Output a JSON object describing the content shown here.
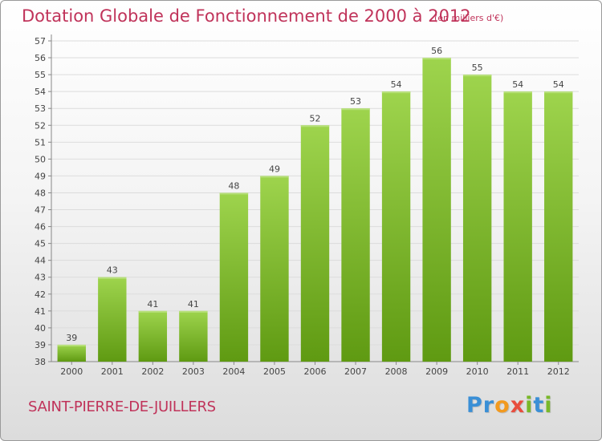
{
  "header": {
    "title": "Dotation Globale de Fonctionnement de 2000 à 2012",
    "unit_note": "(en milliers d'€)"
  },
  "footer": {
    "place_name": "SAINT-PIERRE-DE-JUILLERS",
    "logo_text": "Proxiti"
  },
  "colors": {
    "title": "#c0335a",
    "bar_light": "#9ed44d",
    "bar_dark": "#5f9a12",
    "grid": "#dcdcdc"
  },
  "chart_data": {
    "type": "bar",
    "title": "Dotation Globale de Fonctionnement de 2000 à 2012",
    "subtitle": "(en milliers d'€)",
    "xlabel": "",
    "ylabel": "",
    "categories": [
      "2000",
      "2001",
      "2002",
      "2003",
      "2004",
      "2005",
      "2006",
      "2007",
      "2008",
      "2009",
      "2010",
      "2011",
      "2012"
    ],
    "values": [
      39,
      43,
      41,
      41,
      48,
      49,
      52,
      53,
      54,
      56,
      55,
      54,
      54
    ],
    "ylim": [
      38,
      57
    ],
    "yticks": [
      38,
      39,
      40,
      41,
      42,
      43,
      44,
      45,
      46,
      47,
      48,
      49,
      50,
      51,
      52,
      53,
      54,
      55,
      56,
      57
    ],
    "grid": true,
    "data_labels": true,
    "legend": "none"
  }
}
